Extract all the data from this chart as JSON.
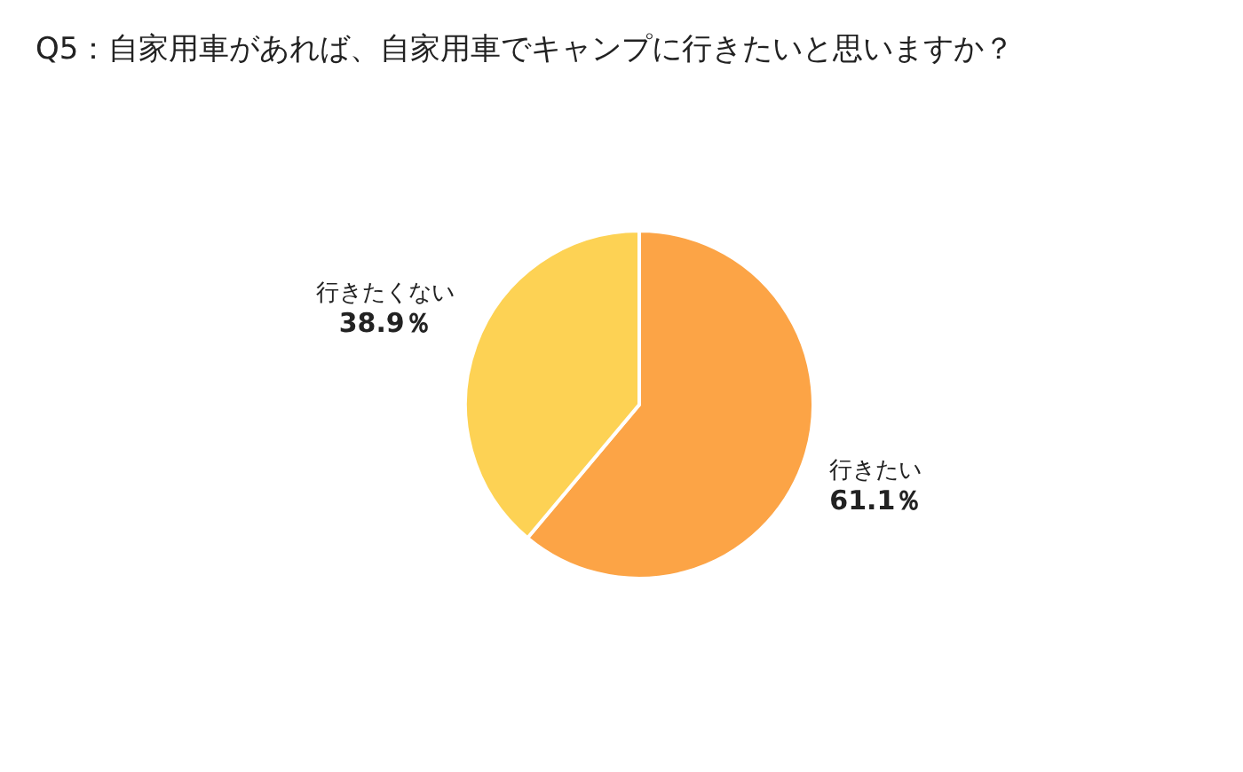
{
  "chart_data": {
    "type": "pie",
    "title": "Q5：自家用車があれば、自家用車でキャンプに行きたいと思いますか？",
    "categories": [
      "行きたい",
      "行きたくない"
    ],
    "values": [
      61.1,
      38.9
    ],
    "value_labels": [
      "61.1％",
      "38.9％"
    ],
    "colors": [
      "#fca446",
      "#fdd254"
    ],
    "legend": false
  }
}
